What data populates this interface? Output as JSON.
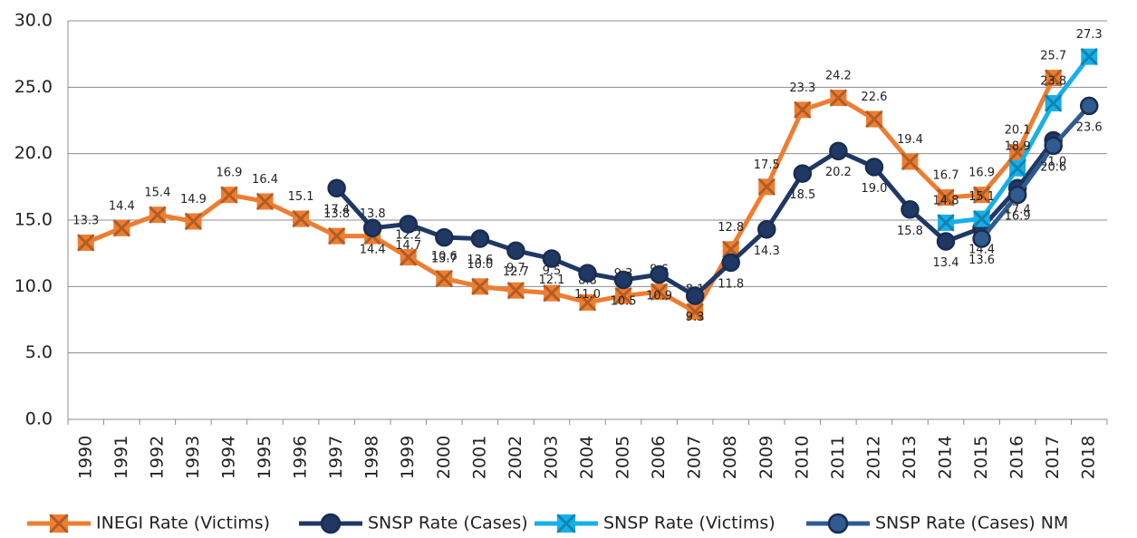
{
  "chart_data": {
    "type": "line",
    "categories": [
      "1990",
      "1991",
      "1992",
      "1993",
      "1994",
      "1995",
      "1996",
      "1997",
      "1998",
      "1999",
      "2000",
      "2001",
      "2002",
      "2003",
      "2004",
      "2005",
      "2006",
      "2007",
      "2008",
      "2009",
      "2010",
      "2011",
      "2012",
      "2013",
      "2014",
      "2015",
      "2016",
      "2017",
      "2018"
    ],
    "ylim": [
      0,
      30
    ],
    "yticks": [
      {
        "value": 0,
        "label": "0.0"
      },
      {
        "value": 5,
        "label": "5.0"
      },
      {
        "value": 10,
        "label": "10.0"
      },
      {
        "value": 15,
        "label": "15.0"
      },
      {
        "value": 20,
        "label": "20.0"
      },
      {
        "value": 25,
        "label": "25.0"
      },
      {
        "value": 30,
        "label": "30.0"
      }
    ],
    "grid": true,
    "legend": "bottom",
    "series": [
      {
        "name": "INEGI Rate (Victims)",
        "color": "#ed7d31",
        "marker": "square-x",
        "values": [
          13.3,
          14.4,
          15.4,
          14.9,
          16.9,
          16.4,
          15.1,
          13.8,
          13.8,
          12.2,
          10.6,
          10.0,
          9.7,
          9.5,
          8.8,
          9.3,
          9.6,
          8.1,
          12.8,
          17.5,
          23.3,
          24.2,
          22.6,
          19.4,
          16.7,
          16.9,
          20.1,
          25.7,
          null
        ],
        "value_labels": [
          "13.3",
          "14.4",
          "15.4",
          "14.9",
          "16.9",
          "16.4",
          "15.1",
          "13.8",
          "13.8",
          "12.2",
          "10.6",
          "10.0",
          "9.7",
          "9.5",
          "8.8",
          "9.3",
          "9.6",
          "8.1",
          "12.8",
          "17.5",
          "23.3",
          "24.2",
          "22.6",
          "19.4",
          "16.7",
          "16.9",
          "20.1",
          "25.7",
          null
        ]
      },
      {
        "name": "SNSP Rate (Cases)",
        "color": "#1f3864",
        "marker": "circle",
        "values": [
          null,
          null,
          null,
          null,
          null,
          null,
          null,
          17.4,
          14.4,
          14.7,
          13.7,
          13.6,
          12.7,
          12.1,
          11.0,
          10.5,
          10.9,
          9.3,
          11.8,
          14.3,
          18.5,
          20.2,
          19.0,
          15.8,
          13.4,
          14.4,
          17.4,
          21.0,
          null
        ],
        "value_labels": [
          null,
          null,
          null,
          null,
          null,
          null,
          null,
          "17.4",
          "14.4",
          "14.7",
          "13.7",
          "13.6",
          "12.7",
          "12.1",
          "11.0",
          "10.5",
          "10.9",
          "9.3",
          "11.8",
          "14.3",
          "18.5",
          "20.2",
          "19.0",
          "15.8",
          "13.4",
          "14.4",
          "17.4",
          "21.0",
          null
        ]
      },
      {
        "name": "SNSP Rate (Victims)",
        "color": "#16b0ea",
        "marker": "square-x",
        "values": [
          null,
          null,
          null,
          null,
          null,
          null,
          null,
          null,
          null,
          null,
          null,
          null,
          null,
          null,
          null,
          null,
          null,
          null,
          null,
          null,
          null,
          null,
          null,
          null,
          14.8,
          15.1,
          18.9,
          23.8,
          27.3
        ],
        "value_labels": [
          null,
          null,
          null,
          null,
          null,
          null,
          null,
          null,
          null,
          null,
          null,
          null,
          null,
          null,
          null,
          null,
          null,
          null,
          null,
          null,
          null,
          null,
          null,
          null,
          "14.8",
          "15.1",
          "18.9",
          "23.8",
          "27.3"
        ]
      },
      {
        "name": "SNSP Rate (Cases) NM",
        "color": "#2f5b8e",
        "marker": "circle",
        "values": [
          null,
          null,
          null,
          null,
          null,
          null,
          null,
          null,
          null,
          null,
          null,
          null,
          null,
          null,
          null,
          null,
          null,
          null,
          null,
          null,
          null,
          null,
          null,
          null,
          null,
          13.6,
          16.9,
          20.6,
          23.6
        ],
        "value_labels": [
          null,
          null,
          null,
          null,
          null,
          null,
          null,
          null,
          null,
          null,
          null,
          null,
          null,
          null,
          null,
          null,
          null,
          null,
          null,
          null,
          null,
          null,
          null,
          null,
          null,
          "13.6",
          "16.9",
          "20.6",
          "23.6"
        ]
      }
    ]
  }
}
